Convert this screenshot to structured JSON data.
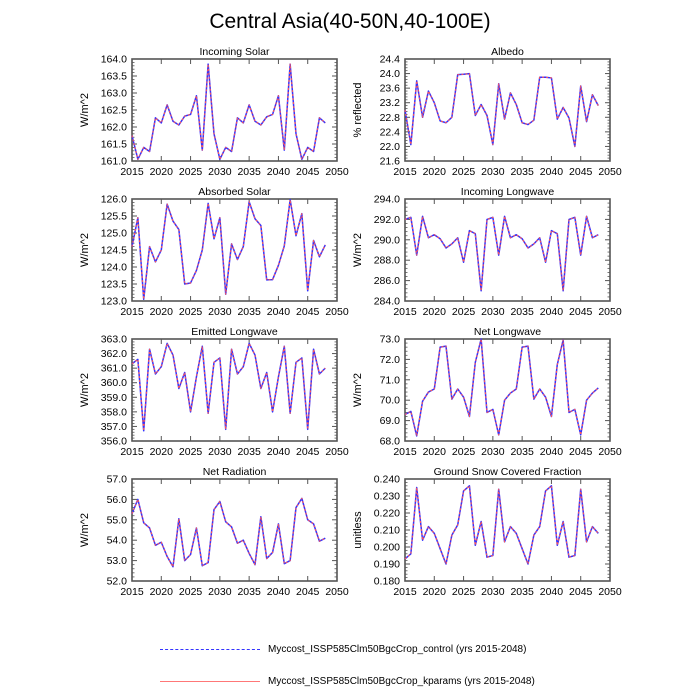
{
  "title": "Central Asia(40-50N,40-100E)",
  "colors": {
    "control": "#3333ff",
    "kparams": "#ff5555",
    "axis": "#555555"
  },
  "legend": [
    {
      "label": "Myccost_ISSP585Clm50BgcCrop_control (yrs 2015-2048)",
      "style": "dashed",
      "color_key": "control"
    },
    {
      "label": "Myccost_ISSP585Clm50BgcCrop_kparams (yrs 2015-2048)",
      "style": "solid",
      "color_key": "kparams"
    }
  ],
  "chart_data": [
    {
      "type": "line",
      "title": "Incoming Solar",
      "xlabel": "",
      "ylabel": "W/m^2",
      "xlim": [
        2015,
        2050
      ],
      "ylim": [
        161.0,
        164.0
      ],
      "xticks": [
        "2015",
        "2020",
        "2025",
        "2030",
        "2035",
        "2040",
        "2045",
        "2050"
      ],
      "yticks": [
        "161.0",
        "161.5",
        "162.0",
        "162.5",
        "163.0",
        "163.5",
        "164.0"
      ],
      "x_start": 2015,
      "series": [
        {
          "name": "control",
          "values": [
            161.75,
            161.05,
            161.4,
            161.28,
            162.27,
            162.12,
            162.65,
            162.17,
            162.06,
            162.32,
            162.37,
            162.92,
            161.32,
            163.85,
            161.8,
            161.05,
            161.4,
            161.28,
            162.27,
            162.12,
            162.65,
            162.17,
            162.06,
            162.3,
            162.37,
            162.92,
            161.32,
            163.85,
            161.8,
            161.05,
            161.4,
            161.28,
            162.27,
            162.12
          ]
        },
        {
          "name": "kparams",
          "values": [
            161.75,
            161.05,
            161.4,
            161.28,
            162.27,
            162.12,
            162.65,
            162.17,
            162.06,
            162.32,
            162.37,
            162.92,
            161.32,
            163.85,
            161.8,
            161.05,
            161.4,
            161.28,
            162.27,
            162.12,
            162.65,
            162.17,
            162.06,
            162.3,
            162.37,
            162.92,
            161.32,
            163.85,
            161.8,
            161.05,
            161.4,
            161.28,
            162.27,
            162.12
          ]
        }
      ]
    },
    {
      "type": "line",
      "title": "Albedo",
      "xlabel": "",
      "ylabel": "% reflected",
      "xlim": [
        2015,
        2050
      ],
      "ylim": [
        21.6,
        24.4
      ],
      "xticks": [
        "2015",
        "2020",
        "2025",
        "2030",
        "2035",
        "2040",
        "2045",
        "2050"
      ],
      "yticks": [
        "21.6",
        "22.0",
        "22.4",
        "22.8",
        "23.2",
        "23.6",
        "24.0",
        "24.4"
      ],
      "x_start": 2015,
      "series": [
        {
          "name": "control",
          "values": [
            23.0,
            22.05,
            23.8,
            22.8,
            23.52,
            23.2,
            22.7,
            22.65,
            22.8,
            23.97,
            23.98,
            24.0,
            22.85,
            23.15,
            22.85,
            22.05,
            23.72,
            22.75,
            23.47,
            23.15,
            22.65,
            22.6,
            22.72,
            23.9,
            23.9,
            23.88,
            22.75,
            23.07,
            22.78,
            22.0,
            23.66,
            22.68,
            23.42,
            23.12
          ]
        },
        {
          "name": "kparams",
          "values": [
            23.0,
            22.05,
            23.8,
            22.8,
            23.52,
            23.2,
            22.7,
            22.65,
            22.8,
            23.97,
            23.98,
            24.0,
            22.85,
            23.15,
            22.85,
            22.05,
            23.72,
            22.75,
            23.47,
            23.15,
            22.65,
            22.6,
            22.72,
            23.9,
            23.9,
            23.88,
            22.75,
            23.07,
            22.78,
            22.0,
            23.66,
            22.68,
            23.42,
            23.12
          ]
        }
      ]
    },
    {
      "type": "line",
      "title": "Absorbed Solar",
      "xlabel": "",
      "ylabel": "W/m^2",
      "xlim": [
        2015,
        2050
      ],
      "ylim": [
        123.0,
        126.0
      ],
      "xticks": [
        "2015",
        "2020",
        "2025",
        "2030",
        "2035",
        "2040",
        "2045",
        "2050"
      ],
      "yticks": [
        "123.0",
        "123.5",
        "124.0",
        "124.5",
        "125.0",
        "125.5",
        "126.0"
      ],
      "x_start": 2015,
      "series": [
        {
          "name": "control",
          "values": [
            124.6,
            125.45,
            123.05,
            124.6,
            124.15,
            124.5,
            125.85,
            125.35,
            125.1,
            123.5,
            123.53,
            123.9,
            124.5,
            125.87,
            124.83,
            125.45,
            123.2,
            124.68,
            124.22,
            124.6,
            125.92,
            125.42,
            125.22,
            123.62,
            123.63,
            124.05,
            124.62,
            125.98,
            124.92,
            125.57,
            123.3,
            124.78,
            124.3,
            124.65
          ]
        },
        {
          "name": "kparams",
          "values": [
            124.6,
            125.45,
            123.05,
            124.6,
            124.15,
            124.5,
            125.85,
            125.35,
            125.1,
            123.5,
            123.53,
            123.9,
            124.5,
            125.87,
            124.83,
            125.45,
            123.2,
            124.68,
            124.22,
            124.6,
            125.92,
            125.42,
            125.22,
            123.62,
            123.63,
            124.05,
            124.62,
            125.98,
            124.92,
            125.57,
            123.3,
            124.78,
            124.3,
            124.65
          ]
        }
      ]
    },
    {
      "type": "line",
      "title": "Incoming Longwave",
      "xlabel": "",
      "ylabel": "W/m^2",
      "xlim": [
        2015,
        2050
      ],
      "ylim": [
        284.0,
        294.0
      ],
      "xticks": [
        "2015",
        "2020",
        "2025",
        "2030",
        "2035",
        "2040",
        "2045",
        "2050"
      ],
      "yticks": [
        "284.0",
        "286.0",
        "288.0",
        "290.0",
        "292.0",
        "294.0"
      ],
      "x_start": 2015,
      "series": [
        {
          "name": "control",
          "values": [
            292.0,
            292.2,
            288.5,
            292.3,
            290.2,
            290.5,
            290.1,
            289.2,
            289.6,
            290.2,
            287.8,
            290.9,
            290.6,
            285.0,
            292.0,
            292.2,
            288.5,
            292.3,
            290.2,
            290.5,
            290.1,
            289.2,
            289.6,
            290.2,
            287.8,
            290.9,
            290.6,
            285.0,
            292.0,
            292.2,
            288.5,
            292.3,
            290.2,
            290.5
          ]
        },
        {
          "name": "kparams",
          "values": [
            292.0,
            292.2,
            288.5,
            292.3,
            290.2,
            290.5,
            290.1,
            289.2,
            289.6,
            290.2,
            287.8,
            290.9,
            290.6,
            285.0,
            292.0,
            292.2,
            288.5,
            292.3,
            290.2,
            290.5,
            290.1,
            289.2,
            289.6,
            290.2,
            287.8,
            290.9,
            290.6,
            285.0,
            292.0,
            292.2,
            288.5,
            292.3,
            290.2,
            290.5
          ]
        }
      ]
    },
    {
      "type": "line",
      "title": "Emitted Longwave",
      "xlabel": "",
      "ylabel": "W/m^2",
      "xlim": [
        2015,
        2050
      ],
      "ylim": [
        356.0,
        363.0
      ],
      "xticks": [
        "2015",
        "2020",
        "2025",
        "2030",
        "2035",
        "2040",
        "2045",
        "2050"
      ],
      "yticks": [
        "356.0",
        "357.0",
        "358.0",
        "359.0",
        "360.0",
        "361.0",
        "362.0",
        "363.0"
      ],
      "x_start": 2015,
      "series": [
        {
          "name": "control",
          "values": [
            361.3,
            361.6,
            356.7,
            362.3,
            360.6,
            361.1,
            362.7,
            361.9,
            359.6,
            360.7,
            358.0,
            360.4,
            362.5,
            357.9,
            361.4,
            361.7,
            356.8,
            362.3,
            360.6,
            361.1,
            362.7,
            361.9,
            359.6,
            360.7,
            358.0,
            360.4,
            362.5,
            357.9,
            361.4,
            361.7,
            356.8,
            362.3,
            360.6,
            361.0
          ]
        },
        {
          "name": "kparams",
          "values": [
            361.3,
            361.6,
            356.7,
            362.3,
            360.6,
            361.1,
            362.7,
            361.9,
            359.6,
            360.7,
            358.0,
            360.4,
            362.5,
            357.9,
            361.4,
            361.7,
            356.8,
            362.3,
            360.6,
            361.1,
            362.7,
            361.9,
            359.6,
            360.7,
            358.0,
            360.4,
            362.5,
            357.9,
            361.4,
            361.7,
            356.8,
            362.3,
            360.6,
            361.0
          ]
        }
      ]
    },
    {
      "type": "line",
      "title": "Net Longwave",
      "xlabel": "",
      "ylabel": "W/m^2",
      "xlim": [
        2015,
        2050
      ],
      "ylim": [
        68.0,
        73.0
      ],
      "xticks": [
        "2015",
        "2020",
        "2025",
        "2030",
        "2035",
        "2040",
        "2045",
        "2050"
      ],
      "yticks": [
        "68.0",
        "69.0",
        "70.0",
        "71.0",
        "72.0",
        "73.0"
      ],
      "x_start": 2015,
      "series": [
        {
          "name": "control",
          "values": [
            69.3,
            69.45,
            68.25,
            69.95,
            70.4,
            70.55,
            72.6,
            72.65,
            70.05,
            70.55,
            70.15,
            69.2,
            71.85,
            73.0,
            69.4,
            69.55,
            68.3,
            70.0,
            70.35,
            70.55,
            72.6,
            72.65,
            70.05,
            70.55,
            70.15,
            69.2,
            71.75,
            72.95,
            69.4,
            69.55,
            68.3,
            70.0,
            70.35,
            70.6
          ]
        },
        {
          "name": "kparams",
          "values": [
            69.3,
            69.45,
            68.25,
            69.95,
            70.4,
            70.55,
            72.6,
            72.65,
            70.05,
            70.55,
            70.15,
            69.2,
            71.85,
            73.0,
            69.4,
            69.55,
            68.3,
            70.0,
            70.35,
            70.55,
            72.6,
            72.65,
            70.05,
            70.55,
            70.15,
            69.2,
            71.75,
            72.95,
            69.4,
            69.55,
            68.3,
            70.0,
            70.35,
            70.6
          ]
        }
      ]
    },
    {
      "type": "line",
      "title": "Net Radiation",
      "xlabel": "",
      "ylabel": "W/m^2",
      "xlim": [
        2015,
        2050
      ],
      "ylim": [
        52.0,
        57.0
      ],
      "xticks": [
        "2015",
        "2020",
        "2025",
        "2030",
        "2035",
        "2040",
        "2045",
        "2050"
      ],
      "yticks": [
        "52.0",
        "53.0",
        "54.0",
        "55.0",
        "56.0",
        "57.0"
      ],
      "x_start": 2015,
      "series": [
        {
          "name": "control",
          "values": [
            55.3,
            56.0,
            54.85,
            54.6,
            53.75,
            53.9,
            53.2,
            52.7,
            55.05,
            53.0,
            53.3,
            54.6,
            52.75,
            52.9,
            55.5,
            55.9,
            54.9,
            54.65,
            53.85,
            54.0,
            53.35,
            52.8,
            55.15,
            53.1,
            53.4,
            54.8,
            52.85,
            53.0,
            55.6,
            56.05,
            55.0,
            54.8,
            53.95,
            54.1
          ]
        },
        {
          "name": "kparams",
          "values": [
            55.3,
            56.0,
            54.85,
            54.6,
            53.75,
            53.9,
            53.2,
            52.7,
            55.05,
            53.0,
            53.3,
            54.6,
            52.75,
            52.9,
            55.5,
            55.9,
            54.9,
            54.65,
            53.85,
            54.0,
            53.35,
            52.8,
            55.15,
            53.1,
            53.4,
            54.8,
            52.85,
            53.0,
            55.6,
            56.05,
            55.0,
            54.8,
            53.95,
            54.1
          ]
        }
      ]
    },
    {
      "type": "line",
      "title": "Ground Snow Covered Fraction",
      "xlabel": "",
      "ylabel": "unitless",
      "xlim": [
        2015,
        2050
      ],
      "ylim": [
        0.18,
        0.24
      ],
      "xticks": [
        "2015",
        "2020",
        "2025",
        "2030",
        "2035",
        "2040",
        "2045",
        "2050"
      ],
      "yticks": [
        "0.180",
        "0.190",
        "0.200",
        "0.210",
        "0.220",
        "0.230",
        "0.240"
      ],
      "x_start": 2015,
      "series": [
        {
          "name": "control",
          "values": [
            0.193,
            0.196,
            0.235,
            0.204,
            0.212,
            0.208,
            0.199,
            0.19,
            0.207,
            0.213,
            0.233,
            0.236,
            0.201,
            0.215,
            0.194,
            0.195,
            0.234,
            0.203,
            0.212,
            0.208,
            0.199,
            0.19,
            0.207,
            0.212,
            0.233,
            0.236,
            0.201,
            0.215,
            0.194,
            0.195,
            0.234,
            0.203,
            0.212,
            0.208
          ]
        },
        {
          "name": "kparams",
          "values": [
            0.193,
            0.196,
            0.235,
            0.204,
            0.212,
            0.208,
            0.199,
            0.19,
            0.207,
            0.213,
            0.233,
            0.236,
            0.201,
            0.215,
            0.194,
            0.195,
            0.234,
            0.203,
            0.212,
            0.208,
            0.199,
            0.19,
            0.207,
            0.212,
            0.233,
            0.236,
            0.201,
            0.215,
            0.194,
            0.195,
            0.234,
            0.203,
            0.212,
            0.208
          ]
        }
      ]
    }
  ]
}
